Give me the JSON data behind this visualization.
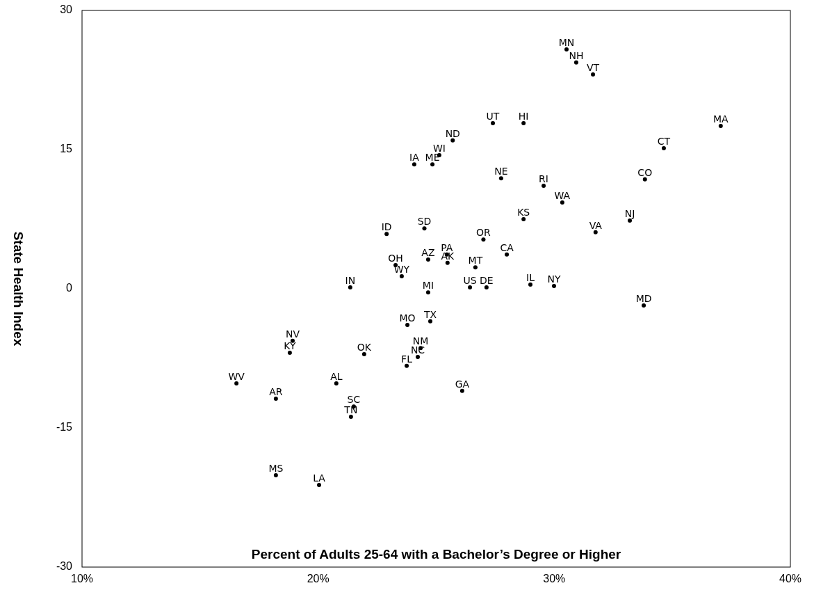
{
  "chart_data": {
    "type": "scatter",
    "xlabel": "Percent of Adults 25-64 with a Bachelor’s Degree or Higher",
    "ylabel": "State Health Index",
    "xlim": [
      10,
      40
    ],
    "ylim": [
      -30,
      30
    ],
    "xticks": [
      {
        "value": 10,
        "label": "10%"
      },
      {
        "value": 20,
        "label": "20%"
      },
      {
        "value": 30,
        "label": "30%"
      },
      {
        "value": 40,
        "label": "40%"
      }
    ],
    "yticks": [
      -30,
      -15,
      0,
      15,
      30
    ],
    "grid": false,
    "marker": "circle",
    "series": [
      {
        "color": "#000000",
        "x": [
          30.52,
          30.93,
          31.64,
          37.05,
          27.4,
          28.7,
          25.7,
          34.64,
          25.13,
          24.07,
          24.84,
          27.75,
          29.55,
          33.84,
          30.34,
          28.7,
          33.2,
          24.5,
          22.9,
          31.75,
          27.0,
          25.45,
          27.99,
          24.66,
          25.48,
          23.28,
          26.66,
          23.54,
          28.99,
          29.99,
          21.36,
          26.43,
          27.13,
          24.66,
          33.79,
          24.75,
          23.78,
          18.92,
          24.34,
          18.8,
          21.95,
          24.22,
          23.75,
          16.54,
          20.77,
          26.1,
          18.21,
          21.51,
          21.39,
          18.21,
          20.04
        ],
        "values": [
          25.8,
          24.4,
          23.1,
          17.55,
          17.85,
          17.85,
          16.0,
          15.15,
          14.4,
          13.4,
          13.4,
          11.9,
          11.1,
          11.8,
          9.3,
          7.5,
          7.35,
          6.5,
          5.9,
          6.1,
          5.3,
          3.7,
          3.7,
          3.15,
          2.8,
          2.55,
          2.3,
          1.35,
          0.45,
          0.3,
          0.15,
          0.15,
          0.15,
          -0.4,
          -1.8,
          -3.5,
          -3.9,
          -5.6,
          -6.4,
          -6.9,
          -7.05,
          -7.35,
          -8.3,
          -10.2,
          -10.2,
          -11.0,
          -11.85,
          -12.7,
          -13.8,
          -20.1,
          -21.15
        ]
      }
    ],
    "annotations": [
      {
        "text": "MN",
        "x": 30.52,
        "y": 25.8
      },
      {
        "text": "NH",
        "x": 30.93,
        "y": 24.4
      },
      {
        "text": "VT",
        "x": 31.64,
        "y": 23.1
      },
      {
        "text": "MA",
        "x": 37.05,
        "y": 17.55
      },
      {
        "text": "UT",
        "x": 27.4,
        "y": 17.85
      },
      {
        "text": "HI",
        "x": 28.7,
        "y": 17.85
      },
      {
        "text": "ND",
        "x": 25.7,
        "y": 16.0
      },
      {
        "text": "CT",
        "x": 34.64,
        "y": 15.15
      },
      {
        "text": "WI",
        "x": 25.13,
        "y": 14.4
      },
      {
        "text": "IA",
        "x": 24.07,
        "y": 13.4
      },
      {
        "text": "ME",
        "x": 24.84,
        "y": 13.4
      },
      {
        "text": "NE",
        "x": 27.75,
        "y": 11.9
      },
      {
        "text": "RI",
        "x": 29.55,
        "y": 11.1
      },
      {
        "text": "CO",
        "x": 33.84,
        "y": 11.8
      },
      {
        "text": "WA",
        "x": 30.34,
        "y": 9.3
      },
      {
        "text": "KS",
        "x": 28.7,
        "y": 7.5
      },
      {
        "text": "NJ",
        "x": 33.2,
        "y": 7.35
      },
      {
        "text": "SD",
        "x": 24.5,
        "y": 6.5
      },
      {
        "text": "ID",
        "x": 22.9,
        "y": 5.9
      },
      {
        "text": "VA",
        "x": 31.75,
        "y": 6.1
      },
      {
        "text": "OR",
        "x": 27.0,
        "y": 5.3
      },
      {
        "text": "PA",
        "x": 25.45,
        "y": 3.7
      },
      {
        "text": "CA",
        "x": 27.99,
        "y": 3.7
      },
      {
        "text": "AZ",
        "x": 24.66,
        "y": 3.15
      },
      {
        "text": "AK",
        "x": 25.48,
        "y": 2.8
      },
      {
        "text": "OH",
        "x": 23.28,
        "y": 2.55
      },
      {
        "text": "MT",
        "x": 26.66,
        "y": 2.3
      },
      {
        "text": "WY",
        "x": 23.54,
        "y": 1.35
      },
      {
        "text": "IL",
        "x": 28.99,
        "y": 0.45
      },
      {
        "text": "NY",
        "x": 29.99,
        "y": 0.3
      },
      {
        "text": "IN",
        "x": 21.36,
        "y": 0.15
      },
      {
        "text": "US",
        "x": 26.43,
        "y": 0.15
      },
      {
        "text": "DE",
        "x": 27.13,
        "y": 0.15
      },
      {
        "text": "MI",
        "x": 24.66,
        "y": -0.4
      },
      {
        "text": "MD",
        "x": 33.79,
        "y": -1.8
      },
      {
        "text": "TX",
        "x": 24.75,
        "y": -3.5
      },
      {
        "text": "MO",
        "x": 23.78,
        "y": -3.9
      },
      {
        "text": "NV",
        "x": 18.92,
        "y": -5.6
      },
      {
        "text": "NM",
        "x": 24.34,
        "y": -6.4
      },
      {
        "text": "KY",
        "x": 18.8,
        "y": -6.9
      },
      {
        "text": "OK",
        "x": 21.95,
        "y": -7.05
      },
      {
        "text": "NC",
        "x": 24.22,
        "y": -7.35
      },
      {
        "text": "FL",
        "x": 23.75,
        "y": -8.3
      },
      {
        "text": "WV",
        "x": 16.54,
        "y": -10.2
      },
      {
        "text": "AL",
        "x": 20.77,
        "y": -10.2
      },
      {
        "text": "GA",
        "x": 26.1,
        "y": -11.0
      },
      {
        "text": "AR",
        "x": 18.21,
        "y": -11.85
      },
      {
        "text": "SC",
        "x": 21.51,
        "y": -12.7
      },
      {
        "text": "TN",
        "x": 21.39,
        "y": -13.8
      },
      {
        "text": "MS",
        "x": 18.21,
        "y": -20.1
      },
      {
        "text": "LA",
        "x": 20.04,
        "y": -21.15
      }
    ]
  }
}
